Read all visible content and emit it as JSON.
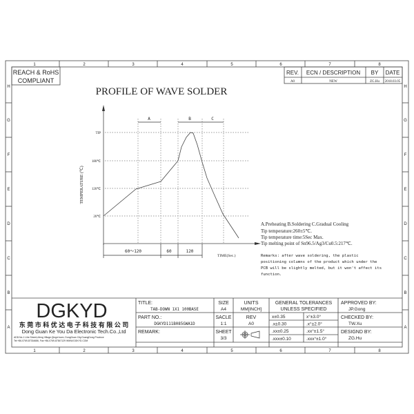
{
  "frame": {
    "columns": [
      "1",
      "2",
      "3",
      "4",
      "5",
      "6",
      "7",
      "8"
    ],
    "rows": [
      "H",
      "G",
      "F",
      "E",
      "D",
      "C",
      "B",
      "A"
    ]
  },
  "compliance": {
    "line1": "REACH & RoHS",
    "line2": "COMPLIANT"
  },
  "revision_table": {
    "headers": [
      "REV.",
      "ECN / DESCRIPTION",
      "BY",
      "DATE"
    ],
    "rows": [
      [
        "A0",
        "NEW",
        "ZG.Hu",
        "2018.03.05"
      ]
    ]
  },
  "drawing_title": "PROFILE OF WAVE SOLDER",
  "profile": {
    "y_axis_label": "TEMPERATURE (℃)",
    "x_axis_label": "TIME(Sec.)",
    "y_ticks": [
      "TIP",
      "180℃",
      "120℃",
      "20℃"
    ],
    "zones": [
      "A",
      "B",
      "C"
    ],
    "durations": [
      "60～120",
      "60",
      "120"
    ]
  },
  "notes": {
    "legend": "A.Preheating  B.Soldering  C.Gradual Cooling",
    "lines": [
      "Tip temperature:260±5℃.",
      "Tip temperature time:5Sec Max.",
      "Tip melting point of Sn96.5/Ag3/Cu0.5:217℃."
    ],
    "remarks": [
      "Remarks: after wave soldering, the plastic",
      "positioning columns of the product  which under the",
      "PCB will be slightly melted, but it won't affect its",
      "function."
    ]
  },
  "title_block": {
    "logo": "DGKYD",
    "company_cn": "东 莞 市 科 优 达 电 子 科 技 有 限 公 司",
    "company_en": "Dong Guan Ke You Da Electronic Tech.Co.,Ltd",
    "address": "ADD:No.1 Lihe Street,Lifeng Village,Qingxi town, DongGuan City,GuangDong Province",
    "contact": "Tel:+86-0769-87334686, Fax:+86-0769-87847129  WWW.DGKYD.COM",
    "title_label": "TITLE:",
    "title_value": "TAB-DOWN 1X1 100BASE",
    "part_label": "PART NO.:",
    "part_value": "DGKYD111B085GWA1D",
    "remark_label": "REMARK:",
    "size_label": "SIZE",
    "size_value": "A4",
    "units_label": "UNITS",
    "units_value": "MM[INCH]",
    "scale_label": "SACLE",
    "scale_value": "1:1",
    "rev_label": "REV",
    "rev_value": "A0",
    "sheet_label": "SHEET",
    "sheet_value": "3/3",
    "tol_header1": "GENERAL TOLERANCES",
    "tol_header2": "UNLESS SPECIFIED",
    "tolerances": [
      [
        "x±0.35",
        "x°±3.0°"
      ],
      [
        ".x±0.30",
        ".x°±2.0°"
      ],
      [
        ".xx±0.25",
        ".xx°±1.5°"
      ],
      [
        ".xxx±0.10",
        ".xxx°±1.0°"
      ]
    ],
    "approved_label": "APPROVED BY:",
    "approved_value": "JP.Gong",
    "checked_label": "CHECKED BY:",
    "checked_value": "TW.Xu",
    "designed_label": "DESIGND BY:",
    "designed_value": "ZG.Hu"
  }
}
